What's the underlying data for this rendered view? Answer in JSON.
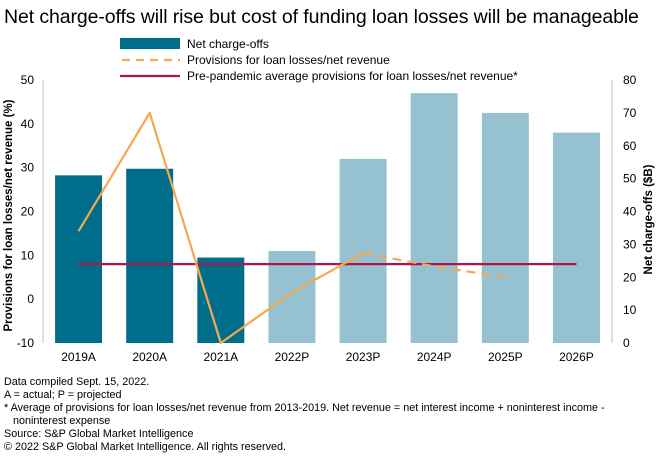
{
  "title": "Net charge-offs will rise but cost of funding loan losses will be manageable",
  "chart_data": {
    "type": "bar+line",
    "categories": [
      "2019A",
      "2020A",
      "2021A",
      "2022P",
      "2023P",
      "2024P",
      "2025P",
      "2026P"
    ],
    "bars": {
      "name": "Net charge-offs",
      "axis": "right",
      "values": [
        51,
        53,
        26,
        28,
        56,
        76,
        70,
        64
      ],
      "projected": [
        false,
        false,
        false,
        true,
        true,
        true,
        true,
        true
      ],
      "color_actual": "#006e8a",
      "color_projected": "#95c1d0"
    },
    "lines": [
      {
        "name": "Provisions for loan losses/net revenue",
        "axis": "left",
        "values": [
          15.5,
          42.5,
          -10,
          1.5,
          10.5,
          7.5,
          5,
          null
        ],
        "solid_through_index": 4,
        "color": "#f4a94f"
      },
      {
        "name": "Pre-pandemic average provisions for loan losses/net revenue*",
        "axis": "left",
        "values": [
          8,
          8,
          8,
          8,
          8,
          8,
          8,
          8
        ],
        "color": "#b0164e"
      }
    ],
    "yleft": {
      "label": "Provisions for loan losses/net revenue (%)",
      "ticks": [
        50,
        40,
        30,
        20,
        10,
        0,
        -10
      ],
      "lim": [
        -10,
        50
      ]
    },
    "yright": {
      "label": "Net charge-offs ($B)",
      "ticks": [
        80,
        70,
        60,
        50,
        40,
        30,
        20,
        10,
        0
      ],
      "lim": [
        0,
        80
      ]
    },
    "legend_position": "top-left"
  },
  "notes": [
    "Data compiled Sept. 15, 2022.",
    "A = actual; P = projected",
    "* Average of provisions for loan losses/net revenue from 2013-2019. Net revenue = net interest income + noninterest income -",
    "noninterest expense",
    "Source: S&P Global Market Intelligence",
    "© 2022 S&P Global Market Intelligence. All rights reserved."
  ]
}
